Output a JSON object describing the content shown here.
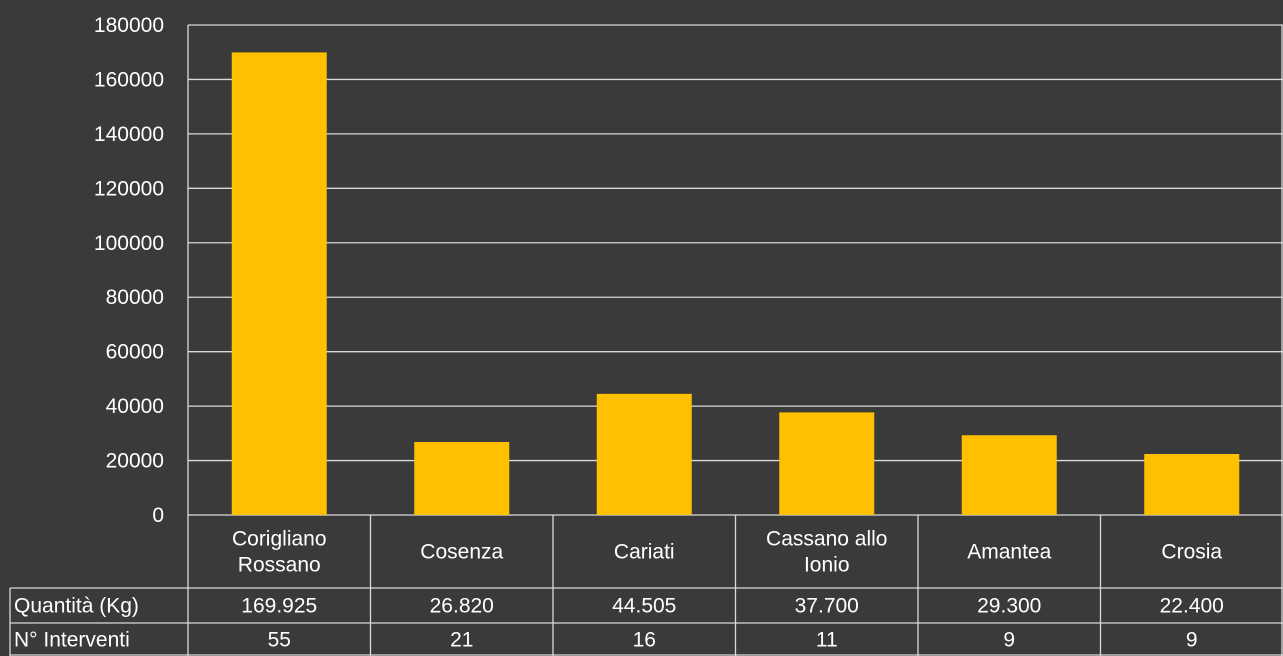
{
  "chart_data": {
    "type": "bar",
    "title": "",
    "xlabel": "",
    "ylabel": "",
    "ylim": [
      0,
      180000
    ],
    "yticks": [
      0,
      20000,
      40000,
      60000,
      80000,
      100000,
      120000,
      140000,
      160000,
      180000
    ],
    "grid": true,
    "legend": "none",
    "bar_color": "#ffc000",
    "grid_color": "#d9d9d9",
    "background": "#3a3a3a",
    "categories": [
      [
        "Corigliano",
        "Rossano"
      ],
      [
        "Cosenza"
      ],
      [
        "Cariati"
      ],
      [
        "Cassano allo",
        "Ionio"
      ],
      [
        "Amantea"
      ],
      [
        "Crosia"
      ]
    ],
    "series": [
      {
        "label": "Quantità (Kg)",
        "values": [
          169925,
          26820,
          44505,
          37700,
          29300,
          22400
        ],
        "display": [
          "169.925",
          "26.820",
          "44.505",
          "37.700",
          "29.300",
          "22.400"
        ]
      },
      {
        "label": "N° Interventi",
        "values": [
          55,
          21,
          16,
          11,
          9,
          9
        ],
        "display": [
          "55",
          "21",
          "16",
          "11",
          "9",
          "9"
        ]
      }
    ]
  }
}
